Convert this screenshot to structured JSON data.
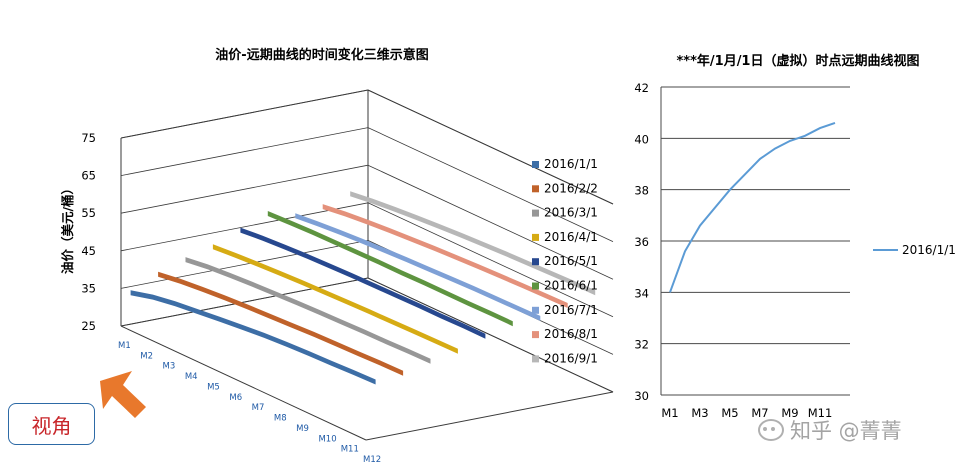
{
  "chart_data": [
    {
      "type": "3d-line",
      "title": "油价-远期曲线的时间变化三维示意图",
      "ylabel": "油价（美元/桶）",
      "y_ticks": [
        "25",
        "35",
        "45",
        "55",
        "65",
        "75"
      ],
      "ylim": [
        25,
        75
      ],
      "x_categories": [
        "M1",
        "M2",
        "M3",
        "M4",
        "M5",
        "M6",
        "M7",
        "M8",
        "M9",
        "M10",
        "M11",
        "M12"
      ],
      "legend_position": "right",
      "series": [
        {
          "name": "2016/1/1",
          "color": "#3d6ea6",
          "values": [
            34.0,
            35.6,
            36.6,
            37.3,
            38.0,
            38.6,
            39.2,
            39.6,
            39.9,
            40.1,
            40.4,
            40.6
          ]
        },
        {
          "name": "2016/2/2",
          "color": "#c0622a",
          "values": [
            37.5,
            38.4,
            39.0,
            39.5,
            39.9,
            40.2,
            40.5,
            40.8,
            41.0,
            41.2,
            41.4,
            41.5
          ]
        },
        {
          "name": "2016/3/1",
          "color": "#979797",
          "values": [
            40.0,
            40.8,
            41.3,
            41.7,
            42.0,
            42.3,
            42.5,
            42.7,
            42.9,
            43.0,
            43.2,
            43.3
          ]
        },
        {
          "name": "2016/4/1",
          "color": "#d6ab14",
          "values": [
            42.0,
            42.5,
            42.9,
            43.2,
            43.5,
            43.7,
            43.9,
            44.1,
            44.2,
            44.3,
            44.4,
            44.5
          ]
        },
        {
          "name": "2016/5/1",
          "color": "#27488f",
          "values": [
            45.0,
            45.6,
            46.0,
            46.3,
            46.5,
            46.7,
            46.8,
            46.9,
            47.0,
            47.0,
            47.1,
            47.1
          ]
        },
        {
          "name": "2016/6/1",
          "color": "#5e9440",
          "values": [
            48.0,
            48.3,
            48.5,
            48.6,
            48.7,
            48.8,
            48.8,
            48.9,
            48.9,
            48.9,
            49.0,
            49.0
          ]
        },
        {
          "name": "2016/7/1",
          "color": "#7ea0d6",
          "values": [
            46.0,
            46.6,
            47.1,
            47.5,
            47.8,
            48.1,
            48.3,
            48.5,
            48.7,
            48.8,
            48.9,
            49.0
          ]
        },
        {
          "name": "2016/8/1",
          "color": "#e4917b",
          "values": [
            47.0,
            47.8,
            48.4,
            48.9,
            49.3,
            49.7,
            50.0,
            50.3,
            50.5,
            50.7,
            50.9,
            51.0
          ]
        },
        {
          "name": "2016/9/1",
          "color": "#b7b7b7",
          "values": [
            49.0,
            49.8,
            50.4,
            50.9,
            51.3,
            51.7,
            52.0,
            52.3,
            52.5,
            52.7,
            52.9,
            53.0
          ]
        }
      ]
    },
    {
      "type": "line",
      "title": "***年/1月/1日（虚拟）时点远期曲线视图",
      "ylim": [
        30,
        42
      ],
      "y_ticks": [
        "30",
        "32",
        "34",
        "36",
        "38",
        "40",
        "42"
      ],
      "x_tick_labels": [
        "M1",
        "M3",
        "M5",
        "M7",
        "M9",
        "M11"
      ],
      "grid": true,
      "legend_position": "right",
      "x": [
        "M1",
        "M2",
        "M3",
        "M4",
        "M5",
        "M6",
        "M7",
        "M8",
        "M9",
        "M10",
        "M11",
        "M12"
      ],
      "series": [
        {
          "name": "2016/1/1",
          "color": "#5b9bd5",
          "values": [
            34.0,
            35.6,
            36.6,
            37.3,
            38.0,
            38.6,
            39.2,
            39.6,
            39.9,
            40.1,
            40.4,
            40.6
          ]
        }
      ]
    }
  ],
  "view_label": "视角",
  "watermark": "知乎 @菁菁"
}
